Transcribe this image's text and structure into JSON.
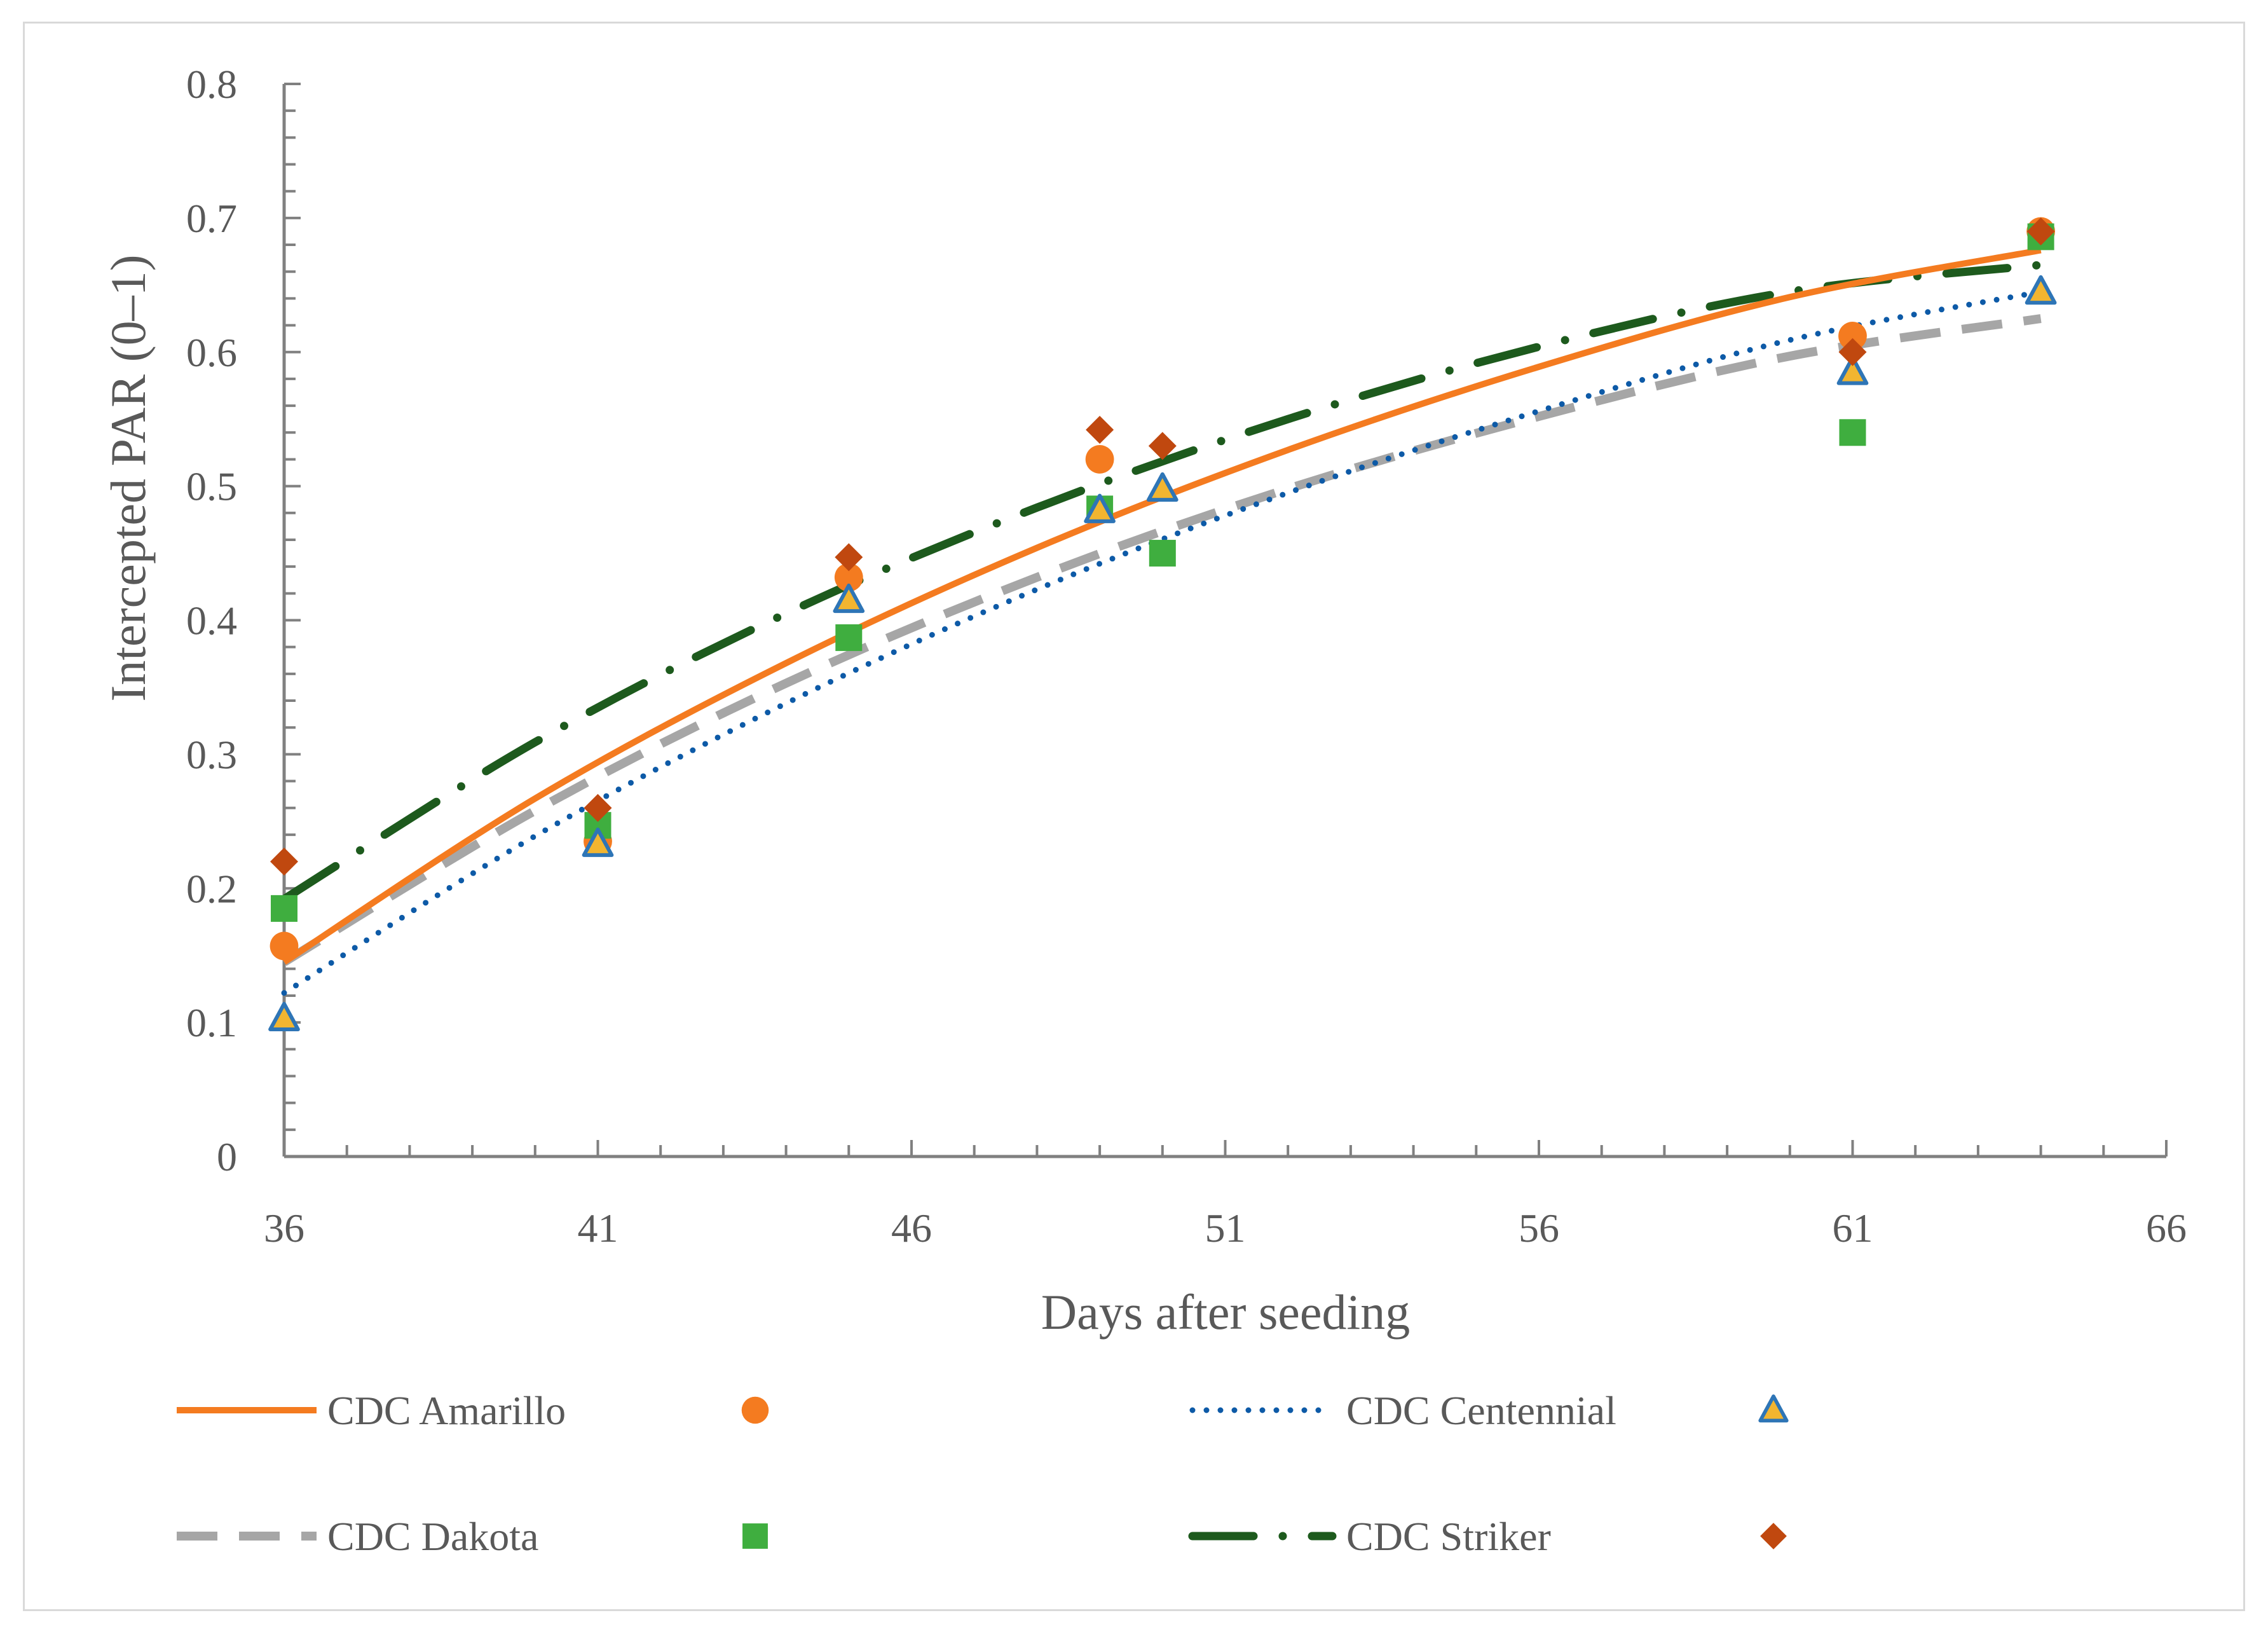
{
  "chart_data": {
    "type": "scatter",
    "title": "",
    "xlabel": "Days after seeding",
    "ylabel": "Intercepted PAR (0–1)",
    "xlim": [
      36,
      66
    ],
    "ylim": [
      0,
      0.8
    ],
    "x_ticks": [
      "36",
      "41",
      "46",
      "51",
      "56",
      "61",
      "66"
    ],
    "y_ticks": [
      "0",
      "0.1",
      "0.2",
      "0.3",
      "0.4",
      "0.5",
      "0.6",
      "0.7",
      "0.8"
    ],
    "grid": false,
    "legend_position": "bottom",
    "series": [
      {
        "name": "CDC Amarillo",
        "trend_style": "solid",
        "trend_color": "#f47b20",
        "trend_x": [
          36,
          40,
          44,
          48,
          52,
          56,
          60,
          64
        ],
        "trend_y": [
          0.145,
          0.267,
          0.368,
          0.454,
          0.527,
          0.589,
          0.641,
          0.676
        ],
        "marker": "circle",
        "marker_color": "#f47b20",
        "points": [
          {
            "x": 36,
            "y": 0.157
          },
          {
            "x": 41,
            "y": 0.235
          },
          {
            "x": 45,
            "y": 0.432
          },
          {
            "x": 49,
            "y": 0.52
          },
          {
            "x": 61,
            "y": 0.612
          },
          {
            "x": 64,
            "y": 0.69
          }
        ]
      },
      {
        "name": "CDC Centennial",
        "trend_style": "dotted",
        "trend_color": "#0d5aa7",
        "trend_x": [
          36,
          40,
          44,
          48,
          52,
          56,
          60,
          64
        ],
        "trend_y": [
          0.122,
          0.239,
          0.338,
          0.423,
          0.495,
          0.556,
          0.609,
          0.645
        ],
        "marker": "triangle",
        "marker_color": "#f2b530",
        "marker_stroke": "#2e75b6",
        "points": [
          {
            "x": 36,
            "y": 0.103
          },
          {
            "x": 41,
            "y": 0.233
          },
          {
            "x": 45,
            "y": 0.415
          },
          {
            "x": 49,
            "y": 0.482
          },
          {
            "x": 50,
            "y": 0.498
          },
          {
            "x": 61,
            "y": 0.585
          },
          {
            "x": 64,
            "y": 0.645
          }
        ]
      },
      {
        "name": "CDC Dakota",
        "trend_style": "dashed",
        "trend_color": "#a6a6a6",
        "trend_x": [
          36,
          40,
          44,
          48,
          52,
          56,
          60,
          64
        ],
        "trend_y": [
          0.145,
          0.258,
          0.353,
          0.432,
          0.498,
          0.552,
          0.597,
          0.625
        ],
        "marker": "square",
        "marker_color": "#3fae3f",
        "points": [
          {
            "x": 36,
            "y": 0.185
          },
          {
            "x": 41,
            "y": 0.247
          },
          {
            "x": 45,
            "y": 0.387
          },
          {
            "x": 49,
            "y": 0.483
          },
          {
            "x": 50,
            "y": 0.45
          },
          {
            "x": 61,
            "y": 0.54
          },
          {
            "x": 64,
            "y": 0.686
          }
        ]
      },
      {
        "name": "CDC Striker",
        "trend_style": "dash-dot",
        "trend_color": "#1d5a1d",
        "trend_x": [
          36,
          40,
          44,
          48,
          52,
          56,
          60,
          64
        ],
        "trend_y": [
          0.192,
          0.309,
          0.405,
          0.484,
          0.55,
          0.604,
          0.645,
          0.665
        ],
        "marker": "diamond",
        "marker_color": "#c0480f",
        "points": [
          {
            "x": 36,
            "y": 0.22
          },
          {
            "x": 41,
            "y": 0.26
          },
          {
            "x": 45,
            "y": 0.447
          },
          {
            "x": 49,
            "y": 0.542
          },
          {
            "x": 50,
            "y": 0.53
          },
          {
            "x": 61,
            "y": 0.6
          },
          {
            "x": 64,
            "y": 0.69
          }
        ]
      }
    ]
  }
}
